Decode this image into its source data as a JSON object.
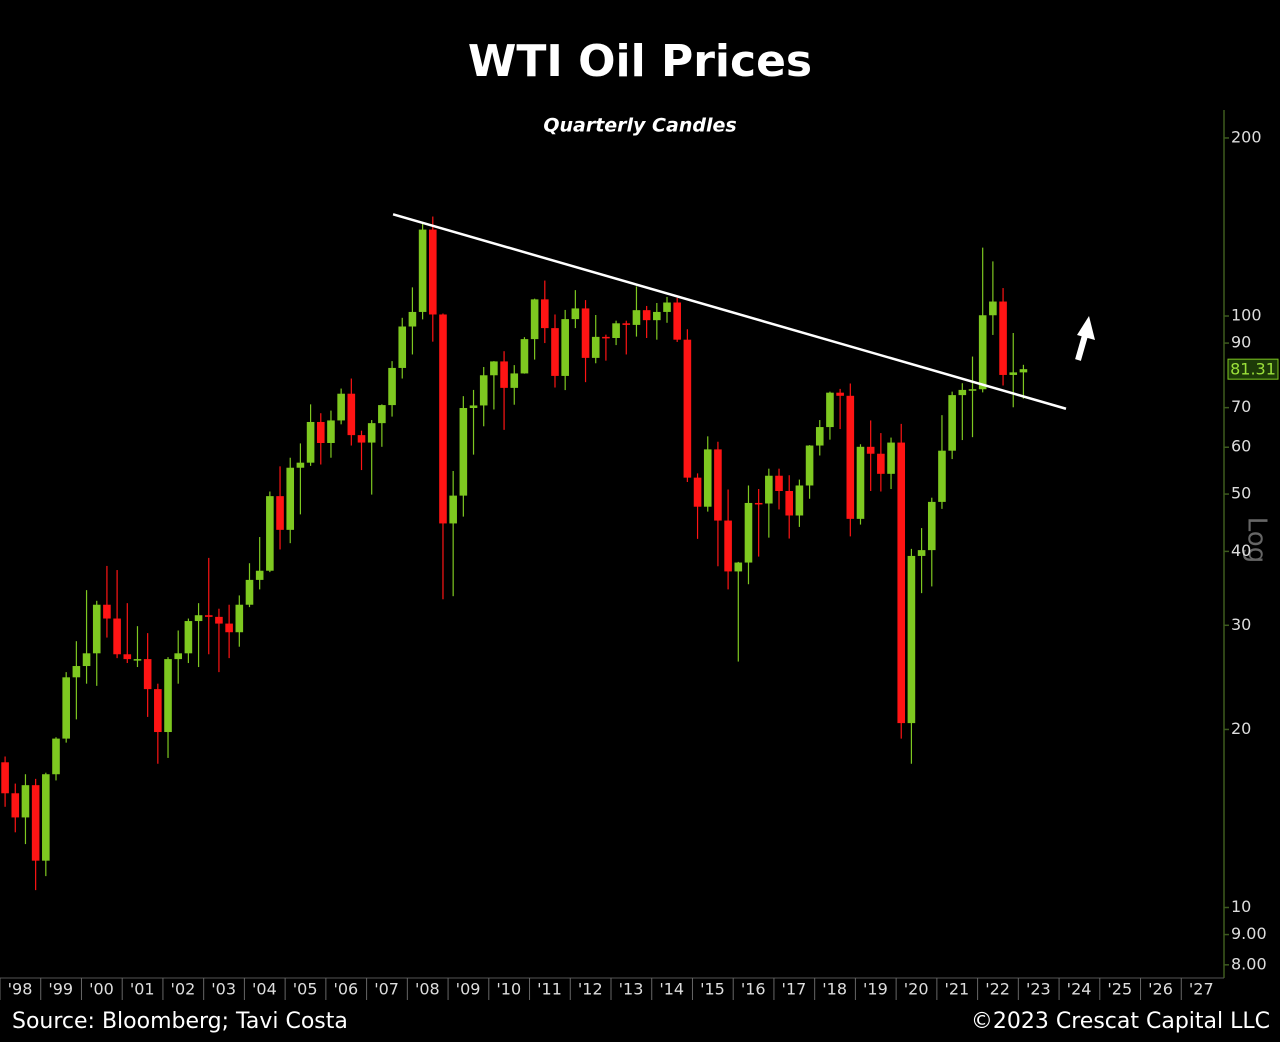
{
  "chart_data": {
    "type": "candlestick",
    "title": "WTI Oil Prices",
    "subtitle": "Quarterly Candles",
    "y_axis_label": "Log",
    "source": "Source: Bloomberg; Tavi Costa",
    "copyright": "©2023 Crescat Capital LLC",
    "log_scale": true,
    "up_color": "#7ec820",
    "down_color": "#ff1414",
    "x": [
      1998.125,
      1998.375,
      1998.625,
      1998.875,
      1999.125,
      1999.375,
      1999.625,
      1999.875,
      2000.125,
      2000.375,
      2000.625,
      2000.875,
      2001.125,
      2001.375,
      2001.625,
      2001.875,
      2002.125,
      2002.375,
      2002.625,
      2002.875,
      2003.125,
      2003.375,
      2003.625,
      2003.875,
      2004.125,
      2004.375,
      2004.625,
      2004.875,
      2005.125,
      2005.375,
      2005.625,
      2005.875,
      2006.125,
      2006.375,
      2006.625,
      2006.875,
      2007.125,
      2007.375,
      2007.625,
      2007.875,
      2008.125,
      2008.375,
      2008.625,
      2008.875,
      2009.125,
      2009.375,
      2009.625,
      2009.875,
      2010.125,
      2010.375,
      2010.625,
      2010.875,
      2011.125,
      2011.375,
      2011.625,
      2011.875,
      2012.125,
      2012.375,
      2012.625,
      2012.875,
      2013.125,
      2013.375,
      2013.625,
      2013.875,
      2014.125,
      2014.375,
      2014.625,
      2014.875,
      2015.125,
      2015.375,
      2015.625,
      2015.875,
      2016.125,
      2016.375,
      2016.625,
      2016.875,
      2017.125,
      2017.375,
      2017.625,
      2017.875,
      2018.125,
      2018.375,
      2018.625,
      2018.875,
      2019.125,
      2019.375,
      2019.625,
      2019.875,
      2020.125,
      2020.375,
      2020.625,
      2020.875,
      2021.125,
      2021.375,
      2021.625,
      2021.875,
      2022.125,
      2022.375,
      2022.625,
      2022.875,
      2023.125
    ],
    "open": [
      17.6,
      15.6,
      14.2,
      16.1,
      12.0,
      16.8,
      19.3,
      24.5,
      25.6,
      26.9,
      32.5,
      30.8,
      26.8,
      26.3,
      26.3,
      23.4,
      19.8,
      26.3,
      26.9,
      30.5,
      31.2,
      31.0,
      30.2,
      29.2,
      32.5,
      35.8,
      37.1,
      49.6,
      43.5,
      55.4,
      56.5,
      66.2,
      61.0,
      66.6,
      73.9,
      62.9,
      61.1,
      65.9,
      70.7,
      81.7,
      96.0,
      101.6,
      140.0,
      100.6,
      44.6,
      49.7,
      69.9,
      70.6,
      79.4,
      83.8,
      75.6,
      79.97,
      91.4,
      106.7,
      95.4,
      79.2,
      98.8,
      103.0,
      84.96,
      92.2,
      91.8,
      97.2,
      96.6,
      102.3,
      98.4,
      101.6,
      105.4,
      91.2,
      53.3,
      47.6,
      59.5,
      45.1,
      37.0,
      38.3,
      48.3,
      48.2,
      53.7,
      50.6,
      46.0,
      51.7,
      60.4,
      64.9,
      74.2,
      73.3,
      45.4,
      60.1,
      58.5,
      54.1,
      61.1,
      20.5,
      39.3,
      40.2,
      48.5,
      59.2,
      73.5,
      75.0,
      75.2,
      100.3,
      105.8,
      79.5,
      80.3
    ],
    "high": [
      18.0,
      16.2,
      16.8,
      16.5,
      16.9,
      19.4,
      25.0,
      28.2,
      34.4,
      33.0,
      37.8,
      37.2,
      32.7,
      29.9,
      29.1,
      23.9,
      26.5,
      29.4,
      30.8,
      32.7,
      39.0,
      32.0,
      32.5,
      33.7,
      38.2,
      42.3,
      50.5,
      55.7,
      57.6,
      60.9,
      70.9,
      68.5,
      69.2,
      75.4,
      78.4,
      64.0,
      66.7,
      70.9,
      83.9,
      99.3,
      111.8,
      143.7,
      147.3,
      101.0,
      54.7,
      73.2,
      75.0,
      82.0,
      83.9,
      87.2,
      82.6,
      92.1,
      107.0,
      114.8,
      100.6,
      102.4,
      110.6,
      106.4,
      100.4,
      93.0,
      98.2,
      98.2,
      112.2,
      104.0,
      105.2,
      107.7,
      107.3,
      95.0,
      54.2,
      62.6,
      61.3,
      50.9,
      38.4,
      51.7,
      51.0,
      55.2,
      55.2,
      53.8,
      52.9,
      60.5,
      66.7,
      74.5,
      75.3,
      76.9,
      60.7,
      66.6,
      63.4,
      62.3,
      65.7,
      40.4,
      43.8,
      49.3,
      67.98,
      74.5,
      76.98,
      85.4,
      130.5,
      123.7,
      111.5,
      93.6,
      82.7
    ],
    "low": [
      14.8,
      13.4,
      12.8,
      10.7,
      11.3,
      16.4,
      19.0,
      20.8,
      23.9,
      23.7,
      28.6,
      26.4,
      25.9,
      25.5,
      21.0,
      17.5,
      17.9,
      23.9,
      25.9,
      25.5,
      26.8,
      25.0,
      26.4,
      27.6,
      32.2,
      34.5,
      36.9,
      40.3,
      41.3,
      46.2,
      55.8,
      56.1,
      57.6,
      65.6,
      60.4,
      54.9,
      49.9,
      60.1,
      67.6,
      78.4,
      86.1,
      98.7,
      90.5,
      33.2,
      33.6,
      45.8,
      58.3,
      65.1,
      69.5,
      64.2,
      70.8,
      79.9,
      84.4,
      90.0,
      75.7,
      74.95,
      95.4,
      77.3,
      83.2,
      84.05,
      89.3,
      86.1,
      92.3,
      91.8,
      91.2,
      97.4,
      90.4,
      52.4,
      42.0,
      46.7,
      37.75,
      34.5,
      26.05,
      35.2,
      39.2,
      42.2,
      47.1,
      42.05,
      44.0,
      49.1,
      58.1,
      61.8,
      64.4,
      42.4,
      44.4,
      50.6,
      50.5,
      50.99,
      19.3,
      17.5,
      34.0,
      34.9,
      47.2,
      57.3,
      61.7,
      62.4,
      74.3,
      92.9,
      76.3,
      70.1,
      72.5
    ],
    "close": [
      15.6,
      14.2,
      16.1,
      12.0,
      16.8,
      19.3,
      24.5,
      25.6,
      26.9,
      32.5,
      30.8,
      26.8,
      26.3,
      26.3,
      23.4,
      19.8,
      26.3,
      26.9,
      30.5,
      31.2,
      31.0,
      30.2,
      29.2,
      32.5,
      35.8,
      37.1,
      49.6,
      43.5,
      55.4,
      56.5,
      66.2,
      61.0,
      66.6,
      73.9,
      62.9,
      61.1,
      65.9,
      70.7,
      81.7,
      96.0,
      101.6,
      140.0,
      100.6,
      44.6,
      49.7,
      69.9,
      70.6,
      79.4,
      83.8,
      75.6,
      79.97,
      91.4,
      106.7,
      95.4,
      79.2,
      98.8,
      103.0,
      84.96,
      92.2,
      91.8,
      97.2,
      96.6,
      102.3,
      98.4,
      101.6,
      105.4,
      91.2,
      53.3,
      47.6,
      59.5,
      45.1,
      37.0,
      38.3,
      48.3,
      48.2,
      53.7,
      50.6,
      46.0,
      51.7,
      60.4,
      64.9,
      74.2,
      73.3,
      45.4,
      60.1,
      58.5,
      54.1,
      61.1,
      20.5,
      39.3,
      40.2,
      48.5,
      59.2,
      73.5,
      75.0,
      75.2,
      100.3,
      105.8,
      79.5,
      80.3,
      81.31
    ],
    "trendline": {
      "x": [
        2007.65,
        2024.17
      ],
      "y": [
        148.6,
        69.7
      ]
    },
    "xlim": [
      1998,
      2028
    ],
    "xticks": [
      {
        "value": 1998,
        "label": "'98"
      },
      {
        "value": 1999,
        "label": "'99"
      },
      {
        "value": 2000,
        "label": "'00"
      },
      {
        "value": 2001,
        "label": "'01"
      },
      {
        "value": 2002,
        "label": "'02"
      },
      {
        "value": 2003,
        "label": "'03"
      },
      {
        "value": 2004,
        "label": "'04"
      },
      {
        "value": 2005,
        "label": "'05"
      },
      {
        "value": 2006,
        "label": "'06"
      },
      {
        "value": 2007,
        "label": "'07"
      },
      {
        "value": 2008,
        "label": "'08"
      },
      {
        "value": 2009,
        "label": "'09"
      },
      {
        "value": 2010,
        "label": "'10"
      },
      {
        "value": 2011,
        "label": "'11"
      },
      {
        "value": 2012,
        "label": "'12"
      },
      {
        "value": 2013,
        "label": "'13"
      },
      {
        "value": 2014,
        "label": "'14"
      },
      {
        "value": 2015,
        "label": "'15"
      },
      {
        "value": 2016,
        "label": "'16"
      },
      {
        "value": 2017,
        "label": "'17"
      },
      {
        "value": 2018,
        "label": "'18"
      },
      {
        "value": 2019,
        "label": "'19"
      },
      {
        "value": 2020,
        "label": "'20"
      },
      {
        "value": 2021,
        "label": "'21"
      },
      {
        "value": 2022,
        "label": "'22"
      },
      {
        "value": 2023,
        "label": "'23"
      },
      {
        "value": 2024,
        "label": "'24"
      },
      {
        "value": 2025,
        "label": "'25"
      },
      {
        "value": 2026,
        "label": "'26"
      },
      {
        "value": 2027,
        "label": "'27"
      }
    ],
    "ylim": [
      7.6,
      223
    ],
    "yticks": [
      {
        "value": 8,
        "label": "8.00"
      },
      {
        "value": 9,
        "label": "9.00"
      },
      10,
      20,
      30,
      40,
      50,
      60,
      70,
      90,
      100,
      200
    ]
  }
}
